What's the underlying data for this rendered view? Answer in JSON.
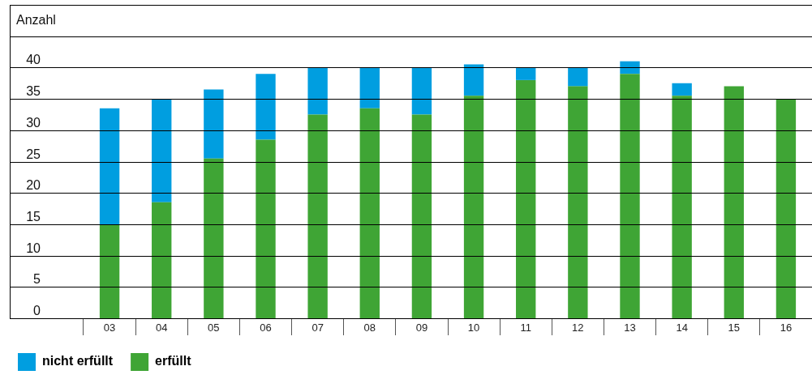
{
  "chart_data": {
    "type": "bar",
    "ylabel": "Anzahl",
    "stacked": true,
    "categories": [
      "03",
      "04",
      "05",
      "06",
      "07",
      "08",
      "09",
      "10",
      "11",
      "12",
      "13",
      "14",
      "15",
      "16"
    ],
    "series": [
      {
        "name": "erfüllt",
        "color": "#3fa535",
        "values": [
          15,
          18.5,
          25.5,
          28.5,
          32.5,
          33.5,
          32.5,
          35.5,
          38,
          37,
          39,
          35.5,
          37,
          35
        ]
      },
      {
        "name": "nicht erfüllt",
        "color": "#009ee0",
        "values": [
          18.5,
          16.5,
          11,
          10.5,
          7.5,
          6.5,
          7.5,
          5,
          2,
          3,
          2,
          2,
          0,
          0
        ]
      }
    ],
    "ylim": [
      0,
      50
    ],
    "yticks": [
      0,
      5,
      10,
      15,
      20,
      25,
      30,
      35,
      40,
      {
        "value": 45,
        "label": null
      },
      {
        "value": 50,
        "label": null
      }
    ],
    "grid": "y",
    "legend": "bottom left"
  }
}
